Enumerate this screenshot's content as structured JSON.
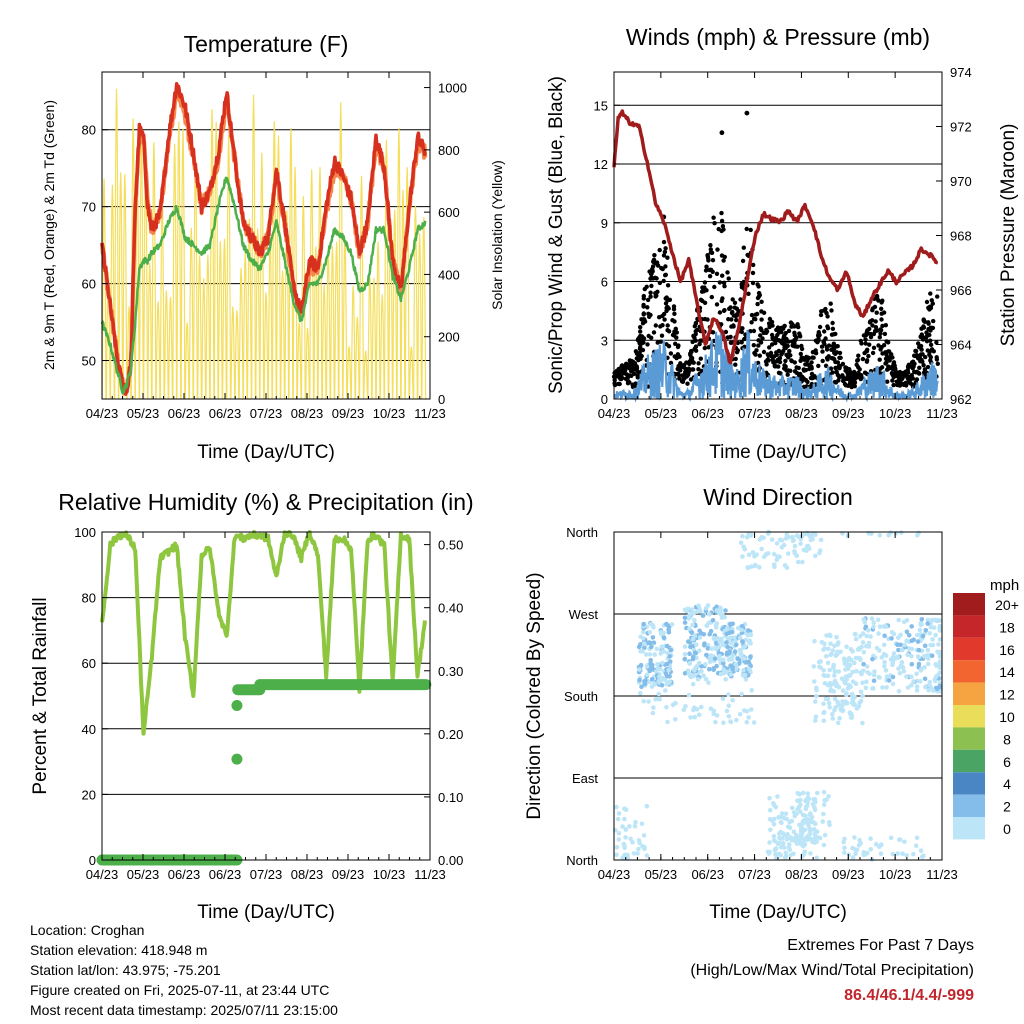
{
  "x_tick_labels": [
    "04/23",
    "05/23",
    "06/23",
    "06/23",
    "07/23",
    "08/23",
    "09/23",
    "10/23",
    "11/23"
  ],
  "x_tick_labels_alt": [
    "04/23",
    "05/23",
    "06/23",
    "07/23",
    "08/23",
    "09/23",
    "10/23",
    "11/23"
  ],
  "temperature": {
    "title": "Temperature (F)",
    "ylabel_left": "2m & 9m T (Red, Orange) & 2m Td (Green)",
    "ylabel_right": "Solar Insolation (Yellow)",
    "xlabel": "Time (Day/UTC)"
  },
  "winds": {
    "title": "Winds (mph) & Pressure (mb)",
    "ylabel_left": "Sonic/Prop Wind & Gust (Blue, Black)",
    "ylabel_right": "Station Pressure (Maroon)",
    "xlabel": "Time (Day/UTC)"
  },
  "humidity": {
    "title": "Relative Humidity (%) & Precipitation (in)",
    "ylabel_left": "Percent & Total Rainfall",
    "xlabel": "Time (Day/UTC)"
  },
  "direction": {
    "title": "Wind Direction",
    "ylabel_left": "Direction (Colored By Speed)",
    "xlabel": "Time (Day/UTC)",
    "colorbar_title": "mph"
  },
  "info": {
    "location": "Location: Croghan",
    "elevation": "Station elevation: 418.948 m",
    "latlon": "Station lat/lon: 43.975; -75.201",
    "created": "Figure created on Fri, 2025-07-11, at 23:44 UTC",
    "recent": "Most recent data timestamp: 2025/07/11 23:15:00"
  },
  "extremes": {
    "title": "Extremes For Past 7 Days",
    "subtitle": "(High/Low/Max Wind/Total Precipitation)",
    "value": "86.4/46.1/4.4/-999",
    "value_color": "#c0272d"
  },
  "colors": {
    "temp_2m": "#d7301f",
    "temp_9m": "#f4874b",
    "dewpoint": "#4daf4a",
    "solar": "#f4de5a",
    "wind": "#5b9bd5",
    "gust": "#000000",
    "pressure": "#a01c1c",
    "rh": "#8fc63f",
    "precip": "#4daf4a"
  },
  "chart_data": [
    {
      "type": "line",
      "title": "Temperature (F)",
      "xlabel": "Time (Day/UTC)",
      "ylabel": "2m & 9m T (Red, Orange) & 2m Td (Green)",
      "y2label": "Solar Insolation (Yellow)",
      "ylim": [
        45,
        87.5
      ],
      "y2lim": [
        0,
        1050
      ],
      "yticks": [
        50,
        60,
        70,
        80
      ],
      "y2ticks": [
        0,
        200,
        400,
        600,
        800,
        1000
      ],
      "x": [
        0,
        2,
        4,
        5,
        6,
        7,
        8,
        9,
        10,
        11,
        12,
        14,
        16,
        18,
        20,
        22,
        24,
        26,
        28,
        30,
        32,
        34,
        36,
        38,
        40,
        42,
        44,
        46,
        48,
        50,
        52,
        54,
        56,
        58,
        60,
        62,
        64,
        66,
        68,
        70,
        72,
        74,
        76,
        78
      ],
      "series": [
        {
          "name": "2m T",
          "values": [
            65,
            57,
            49,
            47,
            46,
            50,
            70,
            80,
            79,
            70,
            67,
            69,
            79,
            86,
            83,
            77,
            70,
            72,
            77,
            85,
            76,
            68,
            66,
            64,
            66,
            75,
            68,
            60,
            56,
            63,
            62,
            70,
            76,
            74,
            71,
            64,
            68,
            79,
            75,
            63,
            59,
            70,
            79,
            77
          ]
        },
        {
          "name": "9m T",
          "values": [
            65,
            57,
            49,
            47,
            46,
            50,
            70,
            79,
            79,
            71,
            67,
            69,
            78,
            85,
            82,
            76,
            70,
            72,
            76,
            84,
            76,
            68,
            66,
            64,
            66,
            74,
            68,
            60,
            56,
            62,
            62,
            69,
            75,
            74,
            71,
            64,
            68,
            78,
            75,
            63,
            59,
            70,
            78,
            77
          ]
        },
        {
          "name": "2m Td",
          "values": [
            55,
            52,
            48,
            46,
            47,
            49,
            55,
            62,
            63,
            63,
            64,
            65,
            68,
            70,
            66,
            65,
            64,
            65,
            70,
            74,
            70,
            65,
            63,
            62,
            64,
            68,
            63,
            58,
            55,
            60,
            60,
            63,
            67,
            66,
            64,
            59,
            60,
            67,
            67,
            61,
            58,
            62,
            67,
            68
          ]
        }
      ]
    },
    {
      "type": "scatter",
      "title": "Winds (mph) & Pressure (mb)",
      "xlabel": "Time (Day/UTC)",
      "ylabel": "Sonic/Prop Wind & Gust (Blue, Black)",
      "y2label": "Station Pressure (Maroon)",
      "ylim": [
        0,
        16.7
      ],
      "y2lim": [
        962,
        974
      ],
      "yticks": [
        0,
        3,
        6,
        9,
        12,
        15
      ],
      "y2ticks": [
        962,
        964,
        966,
        968,
        970,
        972,
        974
      ],
      "pressure": {
        "x": [
          0,
          1,
          2,
          4,
          6,
          8,
          10,
          12,
          14,
          16,
          18,
          20,
          22,
          24,
          26,
          28,
          30,
          32,
          34,
          36,
          38,
          40,
          42,
          44,
          46,
          48,
          50,
          52,
          54,
          56,
          58,
          60,
          62,
          64,
          66,
          68,
          70,
          72,
          74,
          76,
          78
        ],
        "values": [
          970.5,
          972.3,
          972.5,
          972.1,
          972.0,
          970.7,
          969.2,
          968.5,
          967.4,
          966.3,
          967.1,
          965.5,
          964.0,
          965.0,
          964.5,
          963.3,
          964.6,
          966.3,
          968.0,
          968.8,
          968.6,
          968.5,
          968.9,
          968.5,
          969.1,
          968.4,
          967.2,
          966.4,
          966.0,
          966.7,
          965.5,
          965.0,
          965.7,
          966.2,
          966.7,
          966.3,
          966.6,
          966.9,
          967.5,
          967.3,
          967.0
        ]
      },
      "gust_peaks": {
        "x": [
          12,
          26,
          32
        ],
        "values": [
          9.3,
          13.6,
          14.6
        ]
      }
    },
    {
      "type": "line",
      "title": "Relative Humidity (%) & Precipitation (in)",
      "xlabel": "Time (Day/UTC)",
      "ylabel": "Percent & Total Rainfall",
      "ylim": [
        0,
        100
      ],
      "y2lim": [
        0,
        0.52
      ],
      "yticks": [
        0,
        20,
        40,
        60,
        80,
        100
      ],
      "y2ticks": [
        0.0,
        0.1,
        0.2,
        0.3,
        0.4,
        0.5
      ],
      "x": [
        0,
        2,
        4,
        6,
        8,
        10,
        12,
        14,
        16,
        18,
        20,
        22,
        24,
        26,
        28,
        30,
        32,
        34,
        36,
        38,
        40,
        42,
        44,
        46,
        48,
        50,
        52,
        54,
        56,
        58,
        60,
        62,
        64,
        66,
        68,
        70,
        72,
        74,
        76,
        78
      ],
      "series": [
        {
          "name": "RH",
          "values": [
            72,
            96,
            99,
            99,
            95,
            38,
            62,
            92,
            94,
            96,
            68,
            50,
            93,
            95,
            76,
            68,
            99,
            98,
            99,
            99,
            98,
            86,
            100,
            99,
            92,
            100,
            93,
            56,
            98,
            98,
            95,
            52,
            98,
            99,
            96,
            54,
            99,
            98,
            56,
            75
          ]
        },
        {
          "name": "Precipitation",
          "values": [
            0,
            0,
            0,
            0,
            0,
            0,
            0,
            0,
            0,
            0,
            0,
            0,
            0,
            0,
            0,
            0,
            0.27,
            0.28,
            0.28,
            0.28,
            0.28,
            0.28,
            0.28,
            0.28,
            0.28,
            0.28,
            0.28,
            0.28,
            0.28,
            0.28,
            0.28,
            0.28,
            0.28,
            0.28,
            0.28,
            0.28,
            0.28,
            0.28,
            0.28,
            0.28
          ]
        }
      ]
    },
    {
      "type": "scatter",
      "title": "Wind Direction",
      "xlabel": "Time (Day/UTC)",
      "ylabel": "Direction (Colored By Speed)",
      "yticks": [
        "North",
        "East",
        "South",
        "West",
        "North"
      ],
      "colorbar": {
        "title": "mph",
        "labels": [
          "20+",
          "18",
          "16",
          "14",
          "12",
          "10",
          "8",
          "6",
          "4",
          "2",
          "0"
        ],
        "colors": [
          "#a11c1c",
          "#c4262a",
          "#e1392b",
          "#f26430",
          "#f6a442",
          "#e9dd5a",
          "#8cc152",
          "#4aa565",
          "#4b86c4",
          "#84bde9",
          "#bde5f8"
        ]
      }
    }
  ]
}
